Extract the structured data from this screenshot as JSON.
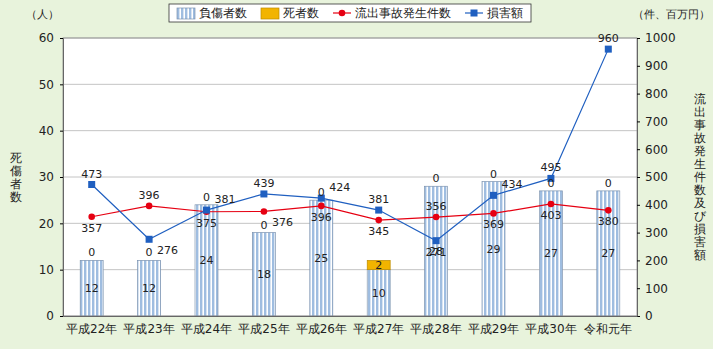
{
  "chart_data": {
    "type": "bar",
    "categories": [
      "平成22年",
      "平成23年",
      "平成24年",
      "平成25年",
      "平成26年",
      "平成27年",
      "平成28年",
      "平成29年",
      "平成30年",
      "令和元年"
    ],
    "series": [
      {
        "name": "負傷者数",
        "type": "bar",
        "color": "#9fbde0",
        "values": [
          12,
          12,
          24,
          18,
          25,
          10,
          28,
          29,
          27,
          27
        ]
      },
      {
        "name": "死者数",
        "type": "bar",
        "color": "#f2b400",
        "values": [
          0,
          0,
          0,
          0,
          0,
          2,
          0,
          0,
          0,
          0
        ]
      },
      {
        "name": "流出事故発生件数",
        "type": "line",
        "color": "#e60012",
        "marker": "circle",
        "axis": "y2",
        "values": [
          357,
          396,
          375,
          376,
          396,
          345,
          356,
          369,
          403,
          380
        ]
      },
      {
        "name": "損害額",
        "type": "line",
        "color": "#1f5fc0",
        "marker": "square",
        "axis": "y2",
        "values": [
          473,
          276,
          381,
          439,
          424,
          381,
          271,
          434,
          495,
          960
        ]
      }
    ],
    "stacked": true,
    "ylabel": "死傷者数",
    "y_unit": "（人）",
    "ylim": [
      0,
      60
    ],
    "yticks": [
      0,
      10,
      20,
      30,
      40,
      50,
      60
    ],
    "y2label": "流出事故発生件数及び損害額",
    "y2_unit": "（件、百万円）",
    "y2lim": [
      0,
      1000
    ],
    "y2ticks": [
      0,
      100,
      200,
      300,
      400,
      500,
      600,
      700,
      800,
      900,
      1000
    ],
    "grid": true,
    "legend": "top",
    "data_labels": true
  }
}
